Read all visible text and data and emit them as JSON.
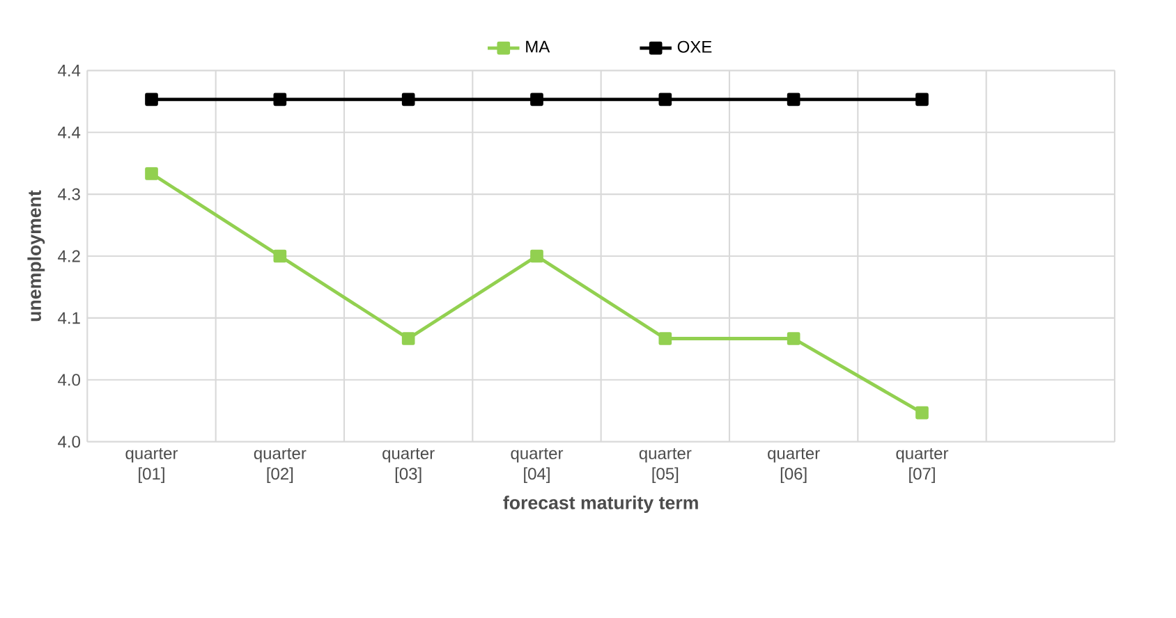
{
  "chart_data": {
    "type": "line",
    "xlabel": "forecast maturity term",
    "ylabel": "unemployment",
    "categories": [
      "quarter [01]",
      "quarter [02]",
      "quarter [03]",
      "quarter [04]",
      "quarter [05]",
      "quarter [06]",
      "quarter [07]",
      null
    ],
    "series": [
      {
        "name": "MA",
        "color": "#92d050",
        "values": [
          4.3,
          4.2,
          4.1,
          4.2,
          4.1,
          4.1,
          4.01,
          null
        ]
      },
      {
        "name": "OXE",
        "color": "#000000",
        "values": [
          4.39,
          4.39,
          4.39,
          4.39,
          4.39,
          4.39,
          4.39,
          null
        ]
      }
    ],
    "ylim": [
      3.975,
      4.425
    ],
    "yticks": [
      {
        "value": 3.975,
        "label": "4.0"
      },
      {
        "value": 4.05,
        "label": "4.0"
      },
      {
        "value": 4.125,
        "label": "4.1"
      },
      {
        "value": 4.2,
        "label": "4.2"
      },
      {
        "value": 4.275,
        "label": "4.3"
      },
      {
        "value": 4.35,
        "label": "4.4"
      },
      {
        "value": 4.425,
        "label": "4.4"
      }
    ],
    "grid": true,
    "legend": "top",
    "marker": "square",
    "line_style": "solid"
  }
}
